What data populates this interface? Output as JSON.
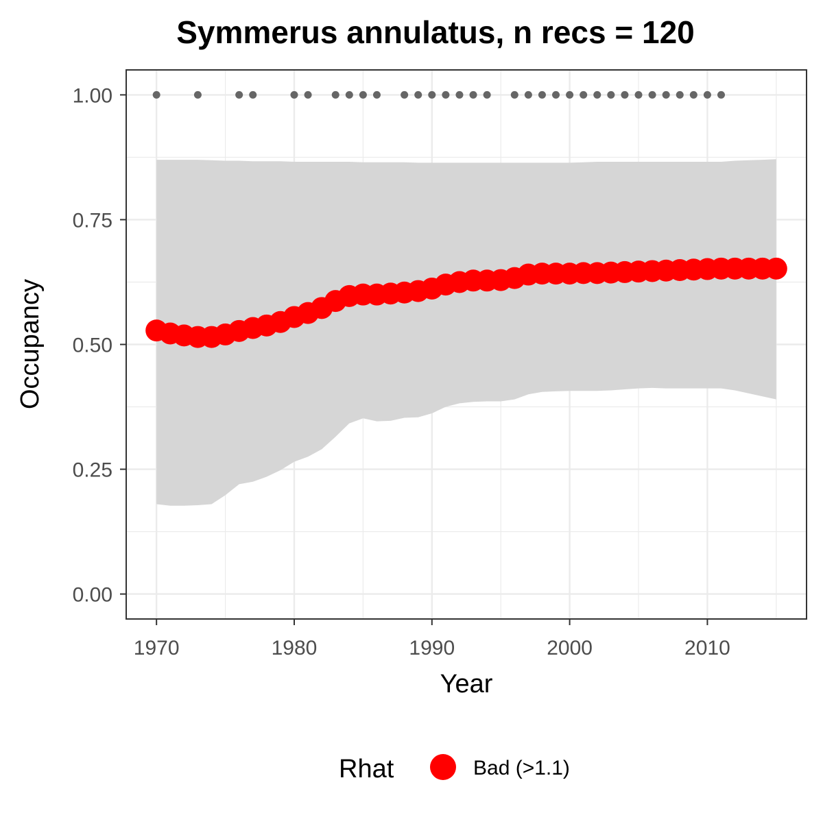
{
  "chart_data": {
    "type": "line",
    "title": "Symmerus annulatus, n recs = 120",
    "xlabel": "Year",
    "ylabel": "Occupancy",
    "xlim": [
      1967.8,
      2017.2
    ],
    "ylim": [
      -0.05,
      1.05
    ],
    "x_ticks": [
      1970,
      1980,
      1990,
      2000,
      2010
    ],
    "x_tick_labels": [
      "1970",
      "1980",
      "1990",
      "2000",
      "2010"
    ],
    "y_ticks": [
      0,
      0.25,
      0.5,
      0.75,
      1.0
    ],
    "y_tick_labels": [
      "0.00",
      "0.25",
      "0.50",
      "0.75",
      "1.00"
    ],
    "grid": true,
    "legend": {
      "title": "Rhat",
      "position": "bottom",
      "items": [
        {
          "label": "Bad (>1.1)",
          "color": "#ff0000"
        }
      ]
    },
    "colors": {
      "line": "#ff0000",
      "ribbon": "#d6d6d6",
      "records": "#666666",
      "grid": "#ebebeb",
      "border": "#333333"
    },
    "x": [
      1970,
      1971,
      1972,
      1973,
      1974,
      1975,
      1976,
      1977,
      1978,
      1979,
      1980,
      1981,
      1982,
      1983,
      1984,
      1985,
      1986,
      1987,
      1988,
      1989,
      1990,
      1991,
      1992,
      1993,
      1994,
      1995,
      1996,
      1997,
      1998,
      1999,
      2000,
      2001,
      2002,
      2003,
      2004,
      2005,
      2006,
      2007,
      2008,
      2009,
      2010,
      2011,
      2012,
      2013,
      2014,
      2015
    ],
    "series": [
      {
        "values": [
          0.528,
          0.522,
          0.518,
          0.515,
          0.515,
          0.52,
          0.527,
          0.533,
          0.538,
          0.545,
          0.555,
          0.563,
          0.573,
          0.587,
          0.597,
          0.6,
          0.6,
          0.602,
          0.604,
          0.607,
          0.612,
          0.62,
          0.625,
          0.628,
          0.628,
          0.629,
          0.633,
          0.64,
          0.642,
          0.642,
          0.642,
          0.643,
          0.643,
          0.644,
          0.645,
          0.646,
          0.647,
          0.648,
          0.649,
          0.65,
          0.651,
          0.652,
          0.652,
          0.652,
          0.652,
          0.652
        ],
        "lower": [
          0.18,
          0.177,
          0.177,
          0.178,
          0.18,
          0.198,
          0.22,
          0.225,
          0.235,
          0.248,
          0.265,
          0.275,
          0.29,
          0.315,
          0.342,
          0.352,
          0.346,
          0.347,
          0.353,
          0.354,
          0.362,
          0.375,
          0.382,
          0.385,
          0.386,
          0.386,
          0.39,
          0.4,
          0.405,
          0.406,
          0.407,
          0.407,
          0.407,
          0.408,
          0.41,
          0.412,
          0.413,
          0.412,
          0.412,
          0.412,
          0.412,
          0.412,
          0.408,
          0.402,
          0.396,
          0.39
        ],
        "upper": [
          0.87,
          0.87,
          0.87,
          0.87,
          0.869,
          0.868,
          0.868,
          0.867,
          0.867,
          0.867,
          0.866,
          0.866,
          0.866,
          0.866,
          0.866,
          0.865,
          0.865,
          0.865,
          0.865,
          0.864,
          0.864,
          0.864,
          0.864,
          0.864,
          0.864,
          0.864,
          0.864,
          0.864,
          0.864,
          0.864,
          0.864,
          0.865,
          0.866,
          0.866,
          0.866,
          0.866,
          0.866,
          0.866,
          0.866,
          0.866,
          0.866,
          0.866,
          0.868,
          0.869,
          0.87,
          0.871
        ]
      }
    ],
    "records": {
      "x": [
        1970,
        1973,
        1976,
        1977,
        1980,
        1981,
        1983,
        1984,
        1985,
        1986,
        1988,
        1989,
        1990,
        1991,
        1992,
        1993,
        1994,
        1996,
        1997,
        1998,
        1999,
        2000,
        2001,
        2002,
        2003,
        2004,
        2005,
        2006,
        2007,
        2008,
        2009,
        2010,
        2011
      ],
      "y": 1.0
    }
  }
}
